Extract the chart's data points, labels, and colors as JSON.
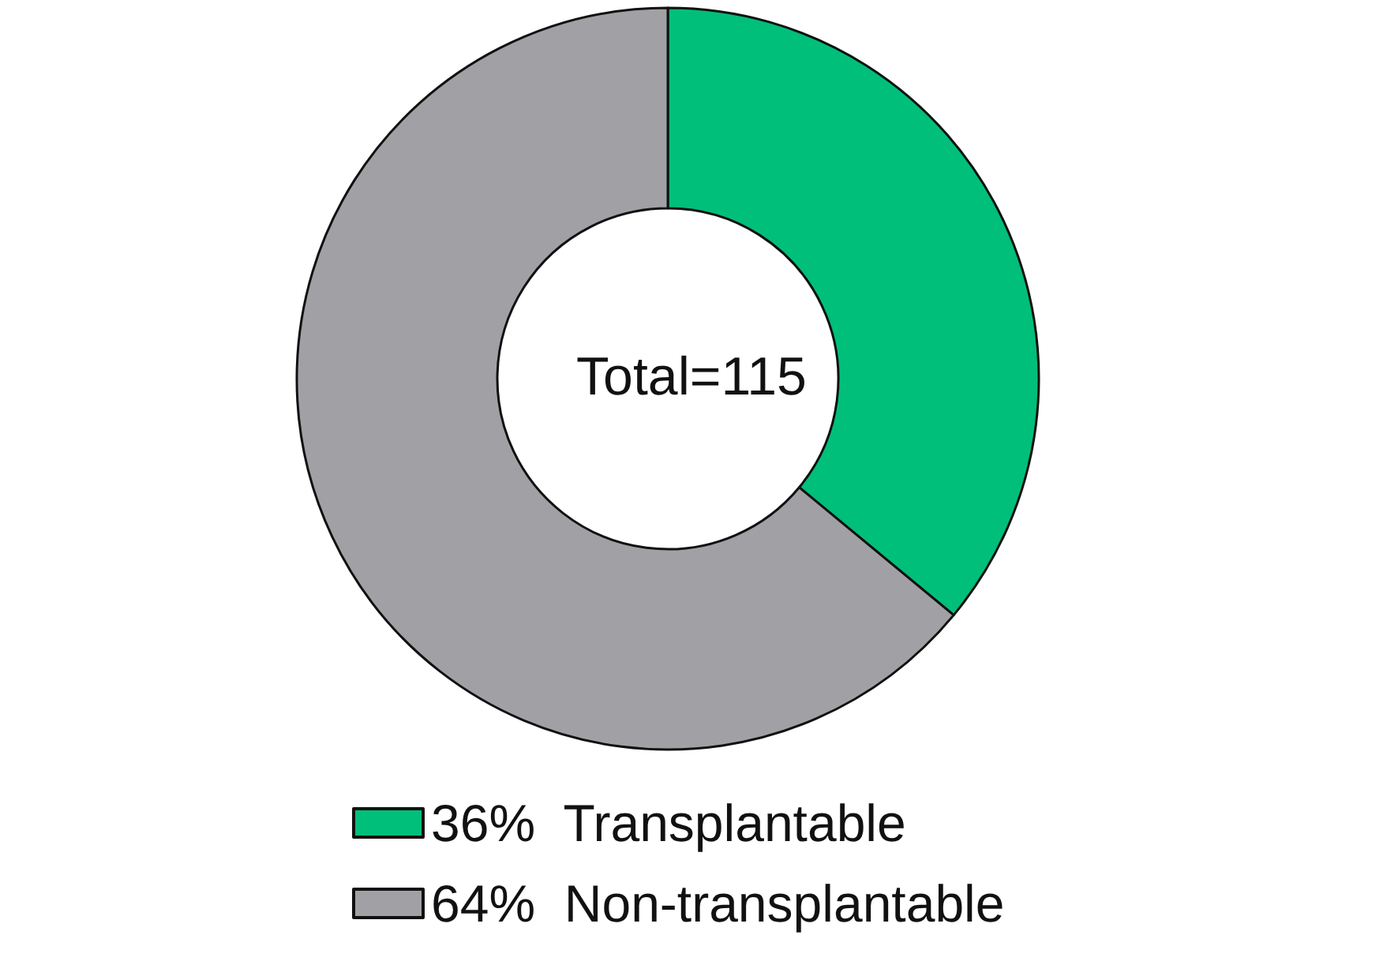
{
  "chart_data": {
    "type": "donut",
    "categories": [
      "Transplantable",
      "Non-transplantable"
    ],
    "values": [
      36,
      64
    ],
    "colors": [
      "#00bf7a",
      "#a1a1a5"
    ],
    "value_labels": [
      "36%",
      "64%"
    ],
    "annotations": [
      "Total=115"
    ],
    "legend": "bottom"
  }
}
